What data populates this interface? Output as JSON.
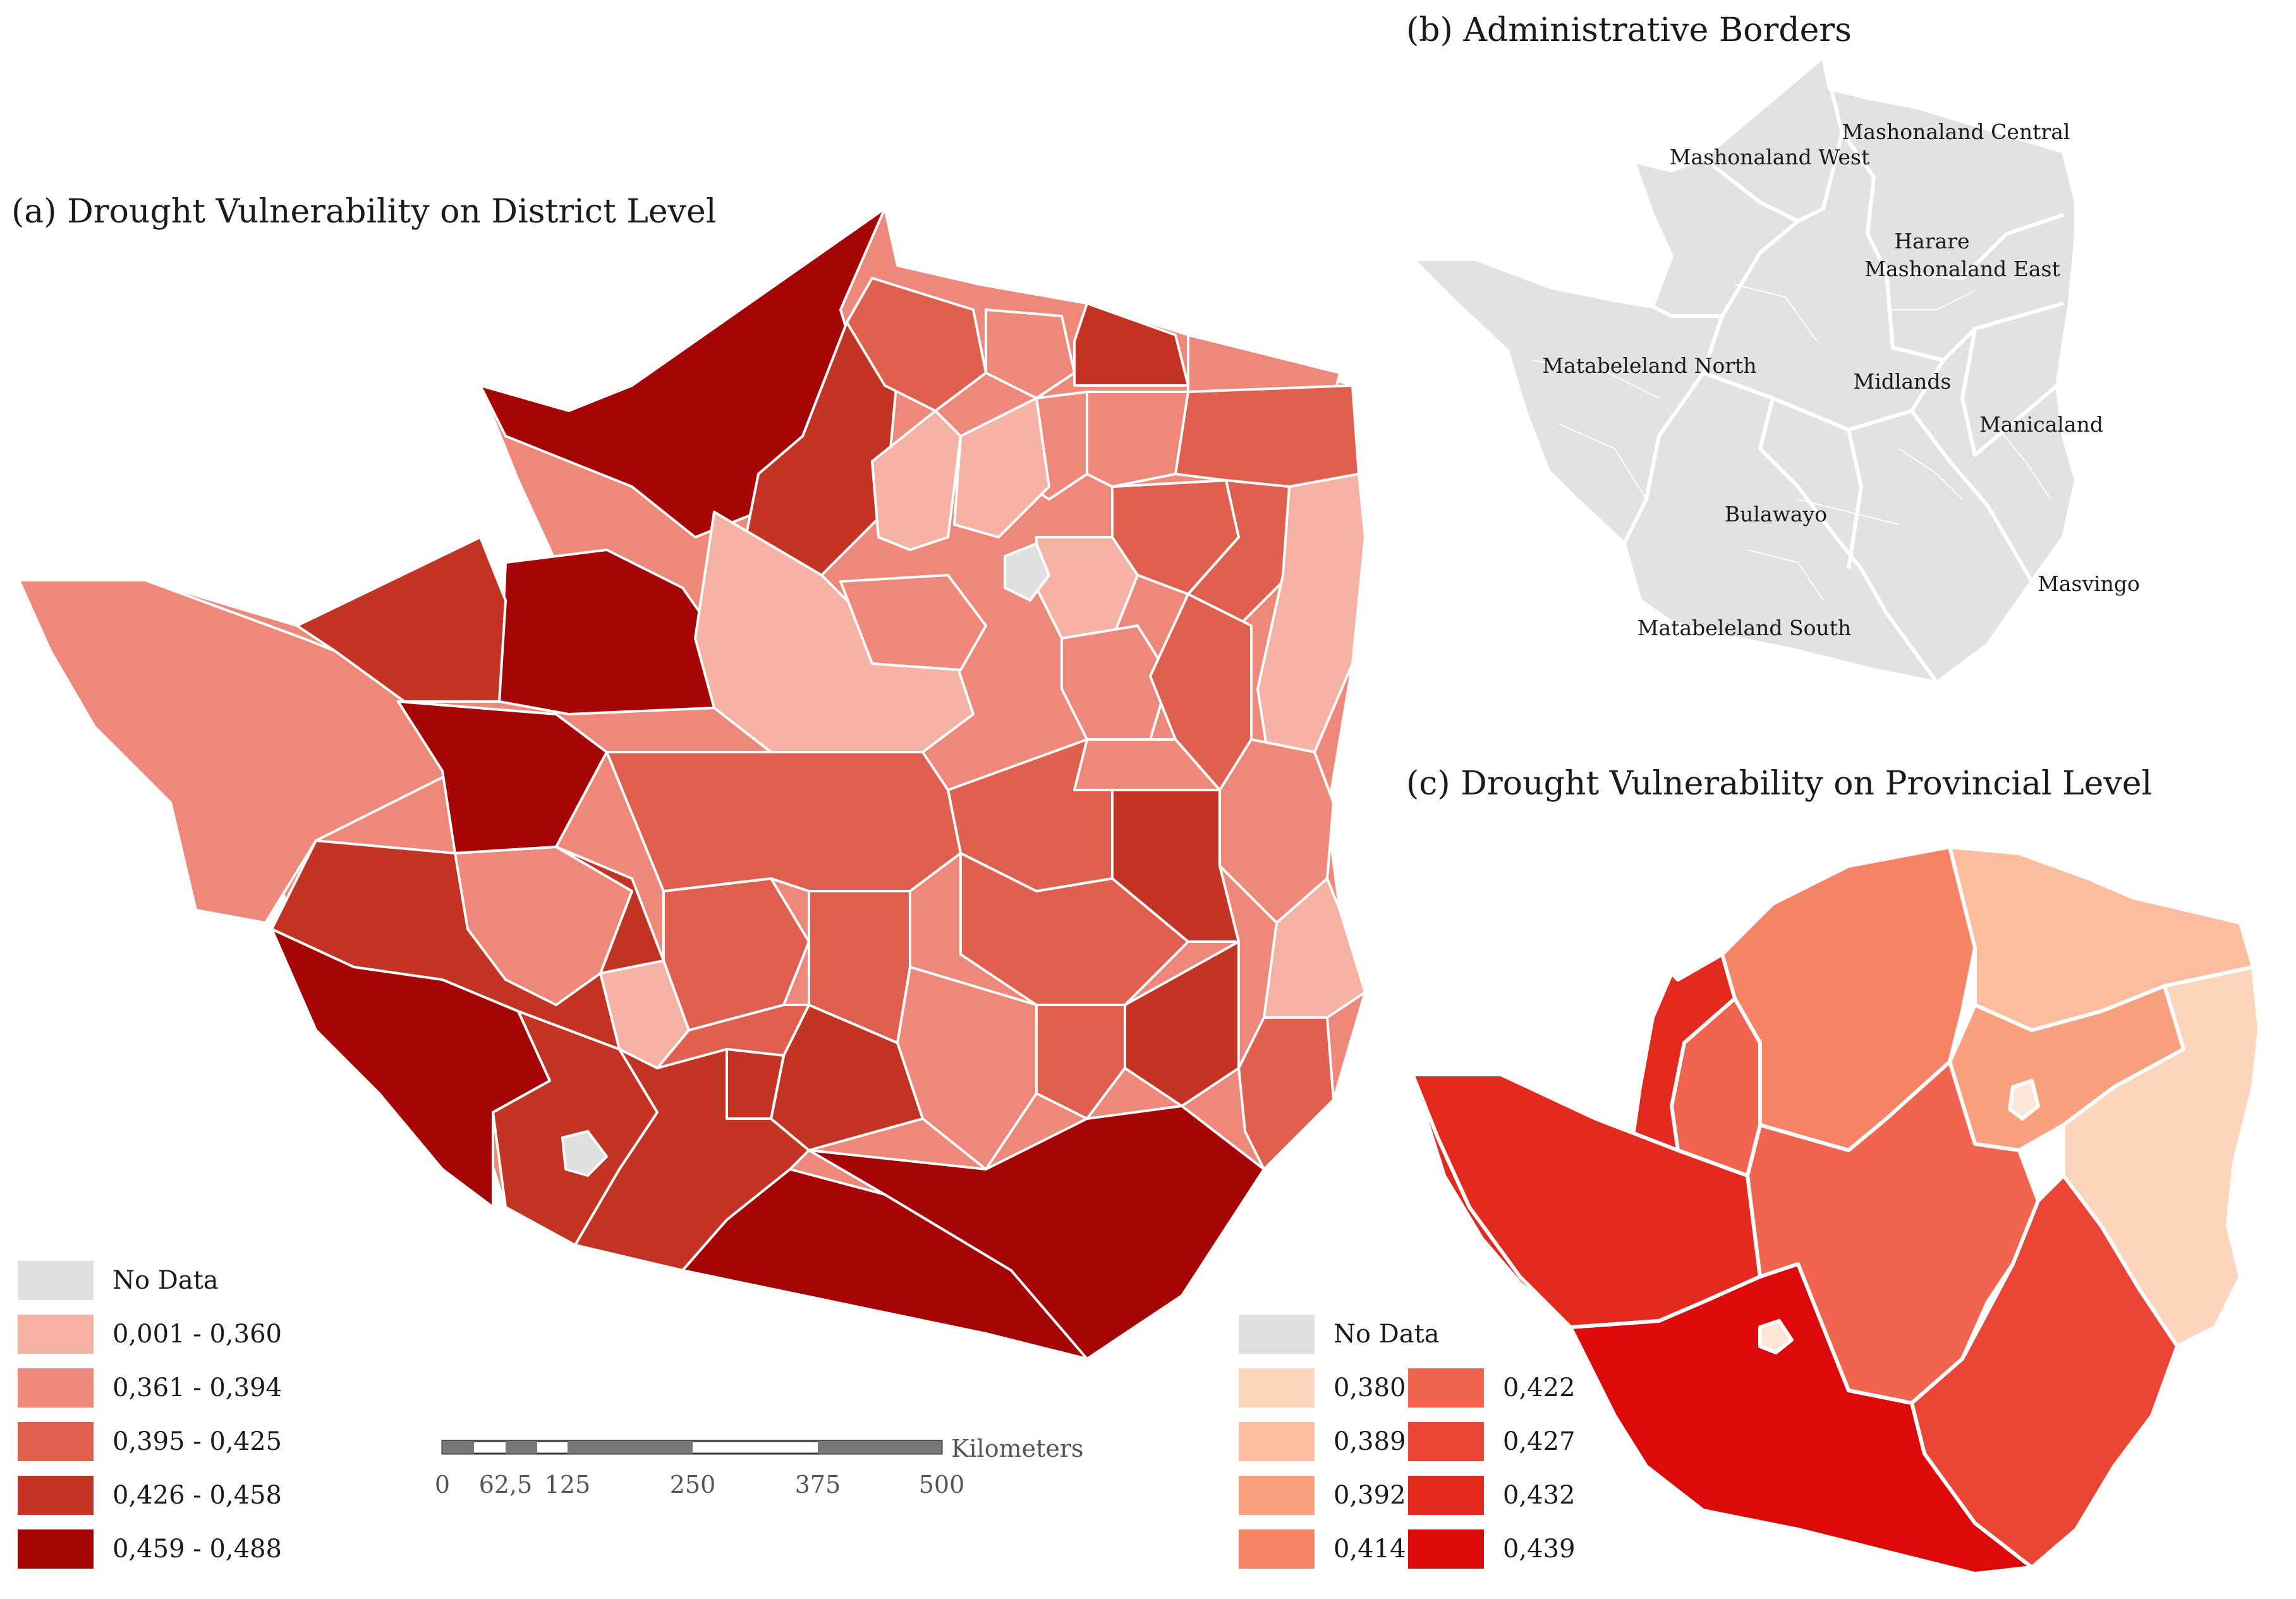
{
  "panel_a": {
    "title": "(a) Drought Vulnerability on District Level",
    "legend": [
      {
        "label": "No Data",
        "color": "#e0e0e0"
      },
      {
        "label": "0,001 - 0,360",
        "color": "#f7b2a6"
      },
      {
        "label": "0,361 - 0,394",
        "color": "#ee887a"
      },
      {
        "label": "0,395 - 0,425",
        "color": "#e06050"
      },
      {
        "label": "0,426 - 0,458",
        "color": "#c43425"
      },
      {
        "label": "0,459 - 0,488",
        "color": "#a50505"
      }
    ],
    "scale": {
      "unit": "Kilometers",
      "ticks": [
        "0",
        "62,5",
        "125",
        "250",
        "375",
        "500"
      ]
    }
  },
  "panel_b": {
    "title": "(b) Administrative Borders",
    "provinces": [
      "Mashonaland West",
      "Mashonaland Central",
      "Harare",
      "Mashonaland East",
      "Matabeleland North",
      "Midlands",
      "Manicaland",
      "Bulawayo",
      "Masvingo",
      "Matabeleland South"
    ],
    "fill": "#e2e2e2"
  },
  "panel_c": {
    "title": "(c) Drought Vulnerability on Provincial Level",
    "legend": [
      {
        "label": "No Data",
        "color": "#e0e0e0"
      },
      {
        "label": "0,380",
        "color": "#fdd5bd"
      },
      {
        "label": "0,389",
        "color": "#fbbd9e"
      },
      {
        "label": "0,392",
        "color": "#f9a07f"
      },
      {
        "label": "0,414",
        "color": "#f58466"
      },
      {
        "label": "0,422",
        "color": "#f06450"
      },
      {
        "label": "0,427",
        "color": "#ea4535"
      },
      {
        "label": "0,432",
        "color": "#e42a1e"
      },
      {
        "label": "0,439",
        "color": "#dc0a0a"
      }
    ]
  }
}
